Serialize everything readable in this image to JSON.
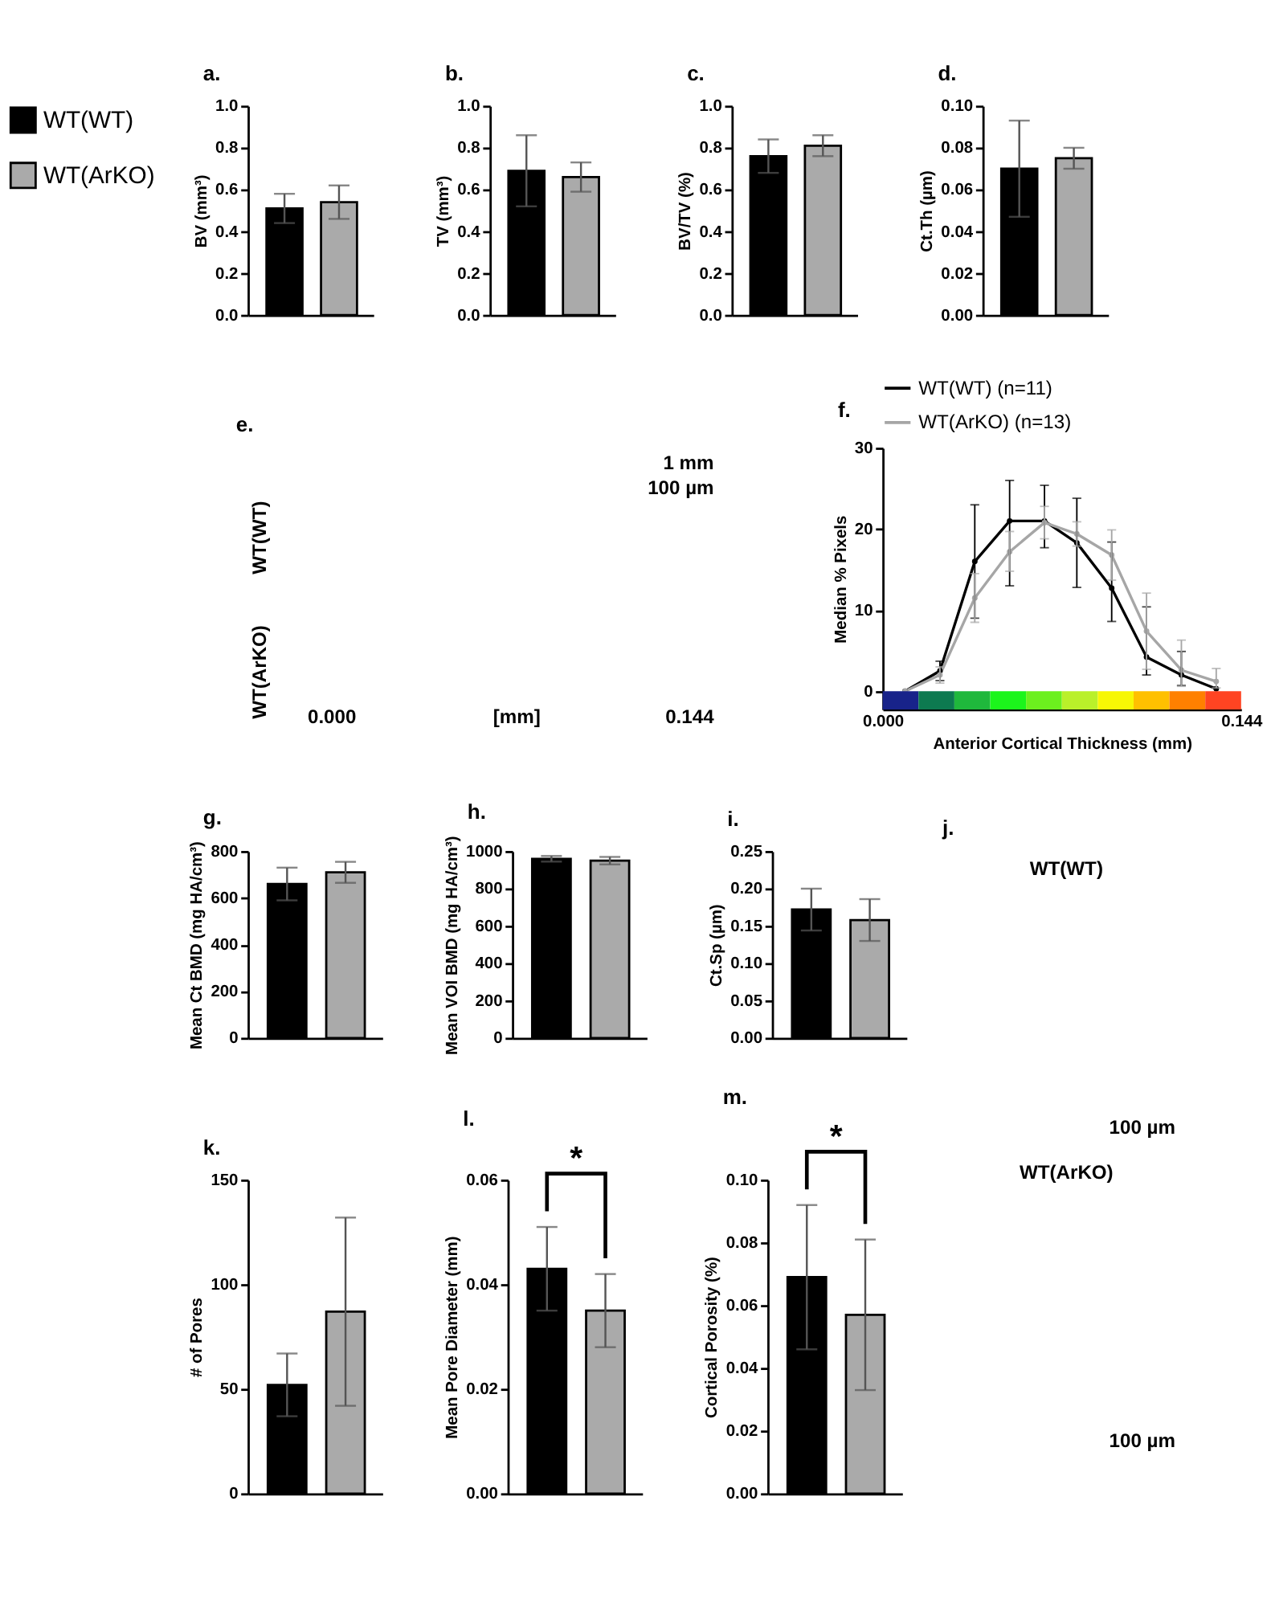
{
  "chart_data": [
    {
      "type": "bar",
      "title": "a.",
      "ylabel": "BV (mm³)",
      "categories": [
        null
      ],
      "series": [
        {
          "name": "WT(WT)",
          "color": "#000000",
          "values": [
            0.51
          ],
          "errors": [
            0.07
          ]
        },
        {
          "name": "WT(ArKO)",
          "color": "#aaaaaa",
          "values": [
            0.54
          ],
          "errors": [
            0.08
          ]
        }
      ],
      "ylim": [
        0,
        1
      ],
      "yticks": [
        {
          "value": 0,
          "label": "0.0"
        },
        0.2,
        0.4,
        0.6,
        0.8,
        {
          "value": 1,
          "label": "1.0"
        }
      ],
      "tick_labels": "y",
      "legend": "left"
    },
    {
      "type": "bar",
      "title": "b.",
      "ylabel": "TV (mm³)",
      "categories": [
        null
      ],
      "series": [
        {
          "color": "#000000",
          "values": [
            0.69
          ],
          "errors": [
            0.17
          ]
        },
        {
          "color": "#aaaaaa",
          "values": [
            0.66
          ],
          "errors": [
            0.07
          ]
        }
      ],
      "ylim": [
        0,
        1
      ],
      "yticks": [
        {
          "value": 0,
          "label": "0.0"
        },
        0.2,
        0.4,
        0.6,
        0.8,
        {
          "value": 1,
          "label": "1.0"
        }
      ],
      "tick_labels": "y"
    },
    {
      "type": "bar",
      "title": "c.",
      "ylabel": "BV/TV (%)",
      "categories": [
        null
      ],
      "series": [
        {
          "color": "#000000",
          "values": [
            0.76
          ],
          "errors": [
            0.08
          ]
        },
        {
          "color": "#aaaaaa",
          "values": [
            0.81
          ],
          "errors": [
            0.05
          ]
        }
      ],
      "ylim": [
        0,
        1
      ],
      "yticks": [
        {
          "value": 0,
          "label": "0.0"
        },
        0.2,
        0.4,
        0.6,
        0.8,
        {
          "value": 1,
          "label": "1.0"
        }
      ],
      "tick_labels": "y"
    },
    {
      "type": "bar",
      "title": "d.",
      "ylabel": "Ct.Th (µm)",
      "categories": [
        null
      ],
      "series": [
        {
          "color": "#000000",
          "values": [
            0.07
          ],
          "errors": [
            0.023
          ]
        },
        {
          "color": "#aaaaaa",
          "values": [
            0.075
          ],
          "errors": [
            0.005
          ]
        }
      ],
      "ylim": [
        0,
        0.1
      ],
      "yticks": [
        {
          "value": 0,
          "label": "0.00"
        },
        0.02,
        0.04,
        0.06,
        0.08,
        {
          "value": 0.1,
          "label": "0.10"
        }
      ],
      "tick_labels": "y"
    },
    {
      "type": "other",
      "title": "e.",
      "annotations": [
        "WT(WT)",
        "WT(ArKO)",
        "1 mm",
        "100 µm",
        "0.000",
        "[mm]",
        "0.144"
      ]
    },
    {
      "type": "line",
      "title": "f.",
      "xlabel": "Anterior Cortical Thickness (mm)",
      "ylabel": "Median % Pixels",
      "x": [
        0.009,
        0.023,
        0.037,
        0.051,
        0.065,
        0.078,
        0.092,
        0.106,
        0.12,
        0.134
      ],
      "series": [
        {
          "name": "WT(WT) (n=11)",
          "color": "#000000",
          "values": [
            0,
            2.5,
            16,
            21,
            21,
            18.3,
            12.7,
            4.2,
            2.0,
            0.3
          ],
          "errors": [
            null,
            1.2,
            7,
            [
              13,
              26
            ],
            [
              17.7,
              25.4
            ],
            5.5,
            [
              8.6,
              18.4
            ],
            [
              2.0,
              10.4
            ],
            [
              0.7,
              4.9
            ],
            null
          ]
        },
        {
          "name": "WT(ArKO) (n=13)",
          "color": "#a6a6a6",
          "values": [
            0,
            2.0,
            11.5,
            17.2,
            20.8,
            19.4,
            16.8,
            7.4,
            2.6,
            1.2
          ],
          "errors": [
            null,
            1.0,
            3,
            [
              14.8,
              19.7
            ],
            2,
            1.5,
            3.1,
            4.7,
            [
              0.6,
              6.3
            ],
            [
              0.4,
              2.8
            ]
          ]
        }
      ],
      "xlim": [
        0,
        0.144
      ],
      "xticks": [
        {
          "value": 0,
          "label": "0.000"
        },
        0.144
      ],
      "ylim": [
        -2.25,
        30
      ],
      "yticks": [
        0,
        10,
        20,
        30
      ],
      "legend": "top",
      "marker": "circle",
      "bands": [
        {
          "axis": "x",
          "from": 0,
          "to": 0.0144,
          "color": "#18238a"
        },
        {
          "axis": "x",
          "from": 0.0144,
          "to": 0.0288,
          "color": "#0d7a50"
        },
        {
          "axis": "x",
          "from": 0.0288,
          "to": 0.0432,
          "color": "#1fb83c"
        },
        {
          "axis": "x",
          "from": 0.0432,
          "to": 0.0576,
          "color": "#1cf51c"
        },
        {
          "axis": "x",
          "from": 0.0576,
          "to": 0.072,
          "color": "#6cf01e"
        },
        {
          "axis": "x",
          "from": 0.072,
          "to": 0.0864,
          "color": "#baf02a"
        },
        {
          "axis": "x",
          "from": 0.0864,
          "to": 0.1008,
          "color": "#f7f705"
        },
        {
          "axis": "x",
          "from": 0.1008,
          "to": 0.1152,
          "color": "#ffc000"
        },
        {
          "axis": "x",
          "from": 0.1152,
          "to": 0.1296,
          "color": "#ff8000"
        },
        {
          "axis": "x",
          "from": 0.1296,
          "to": 0.144,
          "color": "#ff4422"
        }
      ]
    },
    {
      "type": "bar",
      "title": "g.",
      "ylabel": "Mean Ct BMD (mg HA/cm³)",
      "categories": [
        null
      ],
      "series": [
        {
          "color": "#000000",
          "values": [
            660
          ],
          "errors": [
            70
          ]
        },
        {
          "color": "#aaaaaa",
          "values": [
            710
          ],
          "errors": [
            45
          ]
        }
      ],
      "ylim": [
        0,
        800
      ],
      "yticks": [
        0,
        200,
        400,
        600,
        800
      ],
      "tick_labels": "y"
    },
    {
      "type": "bar",
      "title": "h.",
      "ylabel": "Mean VOI BMD (mg HA/cm³)",
      "categories": [
        null
      ],
      "series": [
        {
          "color": "#000000",
          "values": [
            960
          ],
          "errors": [
            15
          ]
        },
        {
          "color": "#aaaaaa",
          "values": [
            950
          ],
          "errors": [
            20
          ]
        }
      ],
      "ylim": [
        0,
        1000
      ],
      "yticks": [
        0,
        200,
        400,
        600,
        800,
        1000
      ],
      "tick_labels": "y"
    },
    {
      "type": "bar",
      "title": "i.",
      "ylabel": "Ct.Sp (µm)",
      "categories": [
        null
      ],
      "series": [
        {
          "color": "#000000",
          "values": [
            0.172
          ],
          "errors": [
            0.028
          ]
        },
        {
          "color": "#aaaaaa",
          "values": [
            0.158
          ],
          "errors": [
            0.028
          ]
        }
      ],
      "ylim": [
        0,
        0.25
      ],
      "yticks": [
        {
          "value": 0,
          "label": "0.00"
        },
        0.05,
        {
          "value": 0.1,
          "label": "0.10"
        },
        0.15,
        {
          "value": 0.2,
          "label": "0.20"
        },
        0.25
      ],
      "tick_labels": "y"
    },
    {
      "type": "other",
      "title": "j.",
      "annotations": [
        "WT(WT)",
        "100 µm",
        "WT(ArKO)",
        "100 µm"
      ]
    },
    {
      "type": "bar",
      "title": "k.",
      "ylabel": "# of Pores",
      "categories": [
        null
      ],
      "series": [
        {
          "color": "#000000",
          "values": [
            52
          ],
          "errors": [
            15
          ]
        },
        {
          "color": "#aaaaaa",
          "values": [
            87
          ],
          "errors": [
            45
          ]
        }
      ],
      "ylim": [
        0,
        150
      ],
      "yticks": [
        0,
        50,
        100,
        150
      ],
      "tick_labels": "y"
    },
    {
      "type": "bar",
      "title": "l.",
      "ylabel": "Mean Pore Diameter (mm)",
      "categories": [
        null
      ],
      "series": [
        {
          "color": "#000000",
          "values": [
            0.043
          ],
          "errors": [
            0.008
          ]
        },
        {
          "color": "#aaaaaa",
          "values": [
            0.035
          ],
          "errors": [
            0.007
          ]
        }
      ],
      "ylim": [
        0,
        0.06
      ],
      "yticks": [
        {
          "value": 0,
          "label": "0.00"
        },
        0.02,
        0.04,
        0.06
      ],
      "tick_labels": "y",
      "annotations": [
        "*"
      ]
    },
    {
      "type": "bar",
      "title": "m.",
      "ylabel": "Cortical Porosity (%)",
      "categories": [
        null
      ],
      "series": [
        {
          "color": "#000000",
          "values": [
            0.069
          ],
          "errors": [
            0.023
          ]
        },
        {
          "color": "#aaaaaa",
          "values": [
            0.057
          ],
          "errors": [
            0.024
          ]
        }
      ],
      "ylim": [
        0,
        0.1
      ],
      "yticks": [
        {
          "value": 0,
          "label": "0.00"
        },
        0.02,
        0.04,
        0.06,
        0.08,
        {
          "value": 0.1,
          "label": "0.10"
        }
      ],
      "tick_labels": "y",
      "annotations": [
        "*"
      ]
    }
  ]
}
